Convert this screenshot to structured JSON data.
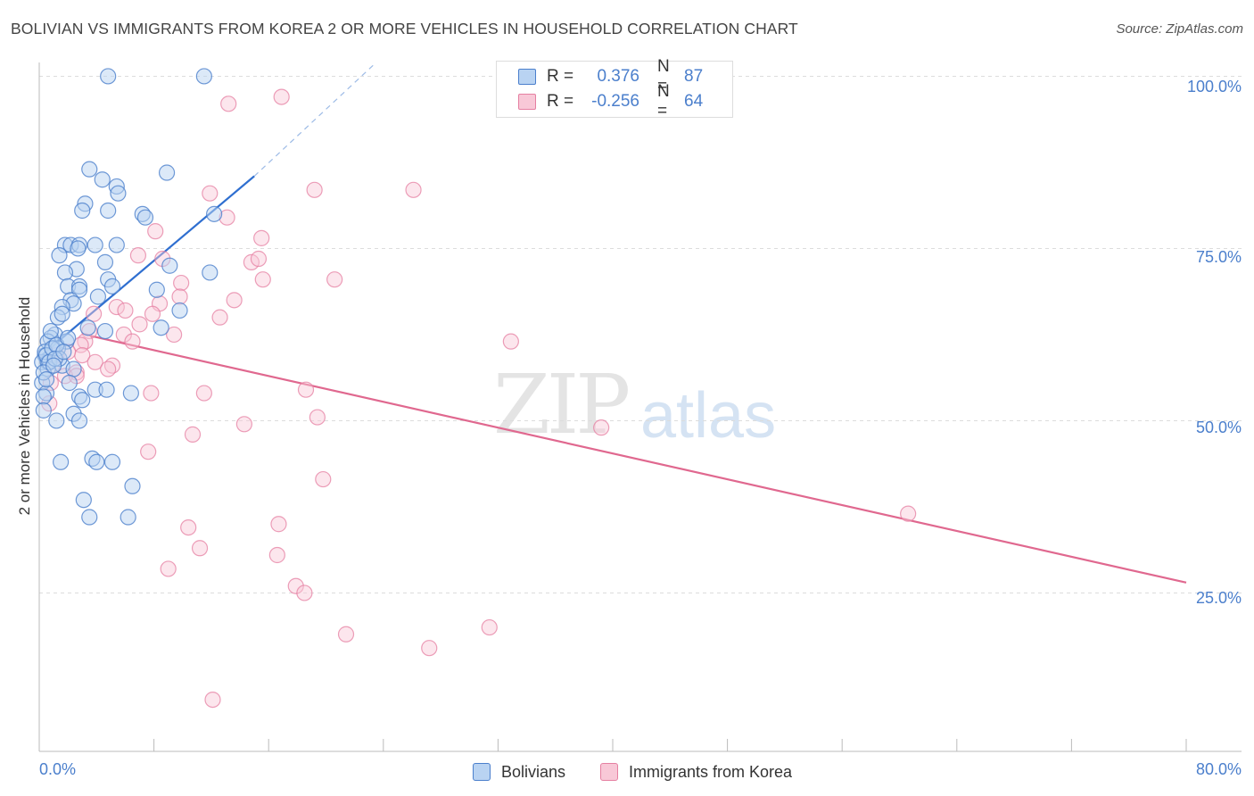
{
  "header": {
    "title": "BOLIVIAN VS IMMIGRANTS FROM KOREA 2 OR MORE VEHICLES IN HOUSEHOLD CORRELATION CHART",
    "source": "Source: ZipAtlas.com"
  },
  "watermark": {
    "zip": "ZIP",
    "atlas": "atlas"
  },
  "legend": {
    "r_label": "R =",
    "n_label": "N =",
    "bolivians": {
      "r": "0.376",
      "n": "87"
    },
    "korea": {
      "r": "-0.256",
      "n": "64"
    }
  },
  "bottom_legend": {
    "bolivians": "Bolivians",
    "korea": "Immigrants from Korea"
  },
  "colors": {
    "blue": "#4b7fcc",
    "blue_fill": "#b9d3f2",
    "pink": "#e57fa1",
    "pink_fill": "#f8c8d7",
    "blue_line": "#2f6fd0",
    "pink_line": "#e0688f",
    "grid": "#dcdcdc"
  },
  "chart_data": {
    "type": "scatter",
    "title": "BOLIVIAN VS IMMIGRANTS FROM KOREA 2 OR MORE VEHICLES IN HOUSEHOLD CORRELATION CHART",
    "xlabel": "",
    "ylabel": "2 or more Vehicles in Household",
    "xlim": [
      0,
      80
    ],
    "ylim": [
      2,
      102
    ],
    "x_tick_labels": [
      "0.0%",
      "80.0%"
    ],
    "y_ticks": [
      25,
      50,
      75,
      100
    ],
    "y_tick_labels": [
      "25.0%",
      "50.0%",
      "75.0%",
      "100.0%"
    ],
    "grid": true,
    "legend_position": "top-center",
    "series": [
      {
        "name": "Bolivians",
        "r": 0.376,
        "n": 87,
        "trend": {
          "x": [
            0,
            15
          ],
          "y": [
            59.2,
            85.5
          ],
          "dashed_to": [
            23.5,
            102
          ]
        },
        "points": [
          [
            4.8,
            100
          ],
          [
            11.5,
            100
          ],
          [
            3.5,
            86.5
          ],
          [
            8.9,
            86
          ],
          [
            4.4,
            85
          ],
          [
            5.4,
            84
          ],
          [
            5.5,
            83
          ],
          [
            3.2,
            81.5
          ],
          [
            4.8,
            80.5
          ],
          [
            3.0,
            80.5
          ],
          [
            7.2,
            80
          ],
          [
            7.4,
            79.5
          ],
          [
            12.2,
            80
          ],
          [
            1.8,
            75.5
          ],
          [
            2.2,
            75.5
          ],
          [
            2.8,
            75.5
          ],
          [
            3.9,
            75.5
          ],
          [
            5.4,
            75.5
          ],
          [
            2.7,
            75
          ],
          [
            1.4,
            74
          ],
          [
            9.1,
            72.5
          ],
          [
            4.6,
            73
          ],
          [
            2.6,
            72
          ],
          [
            1.8,
            71.5
          ],
          [
            11.9,
            71.5
          ],
          [
            4.8,
            70.5
          ],
          [
            2.0,
            69.5
          ],
          [
            2.8,
            69.5
          ],
          [
            2.8,
            69
          ],
          [
            5.1,
            69.5
          ],
          [
            8.2,
            69
          ],
          [
            4.1,
            68
          ],
          [
            2.2,
            67.5
          ],
          [
            2.4,
            67
          ],
          [
            1.6,
            66.5
          ],
          [
            9.8,
            66
          ],
          [
            1.3,
            65
          ],
          [
            1.6,
            65.5
          ],
          [
            3.4,
            63.5
          ],
          [
            4.6,
            63
          ],
          [
            8.5,
            63.5
          ],
          [
            1.1,
            62.5
          ],
          [
            0.8,
            62
          ],
          [
            0.6,
            61.5
          ],
          [
            1.9,
            61.5
          ],
          [
            1.0,
            60.5
          ],
          [
            1.3,
            60.5
          ],
          [
            0.4,
            59.5
          ],
          [
            0.2,
            58.5
          ],
          [
            0.6,
            58.5
          ],
          [
            1.6,
            58
          ],
          [
            0.6,
            57.5
          ],
          [
            2.4,
            57.5
          ],
          [
            0.2,
            55.5
          ],
          [
            2.1,
            55.5
          ],
          [
            0.5,
            54
          ],
          [
            0.3,
            53.5
          ],
          [
            3.9,
            54.5
          ],
          [
            6.4,
            54
          ],
          [
            4.7,
            54.5
          ],
          [
            2.8,
            53.5
          ],
          [
            3.0,
            53
          ],
          [
            0.3,
            51.5
          ],
          [
            2.4,
            51
          ],
          [
            1.2,
            50
          ],
          [
            2.8,
            50
          ],
          [
            1.5,
            44
          ],
          [
            3.7,
            44.5
          ],
          [
            4.0,
            44
          ],
          [
            5.1,
            44
          ],
          [
            3.1,
            38.5
          ],
          [
            6.5,
            40.5
          ],
          [
            3.5,
            36
          ],
          [
            6.2,
            36
          ],
          [
            0.4,
            60
          ],
          [
            0.5,
            59.5
          ],
          [
            0.9,
            60.5
          ],
          [
            1.2,
            61
          ],
          [
            0.7,
            58.5
          ],
          [
            1.4,
            59
          ],
          [
            2.0,
            62
          ],
          [
            0.8,
            63
          ],
          [
            1.1,
            59
          ],
          [
            1.7,
            60
          ],
          [
            0.3,
            57
          ],
          [
            0.5,
            56
          ],
          [
            1.0,
            58
          ]
        ]
      },
      {
        "name": "Immigrants from Korea",
        "r": -0.256,
        "n": 64,
        "trend": {
          "x": [
            3.6,
            80
          ],
          "y": [
            62.3,
            26.5
          ]
        },
        "points": [
          [
            16.9,
            97
          ],
          [
            13.2,
            96
          ],
          [
            19.2,
            83.5
          ],
          [
            26.1,
            83.5
          ],
          [
            11.9,
            83
          ],
          [
            13.1,
            79.5
          ],
          [
            8.1,
            77.5
          ],
          [
            15.5,
            76.5
          ],
          [
            6.9,
            74
          ],
          [
            8.6,
            73.5
          ],
          [
            14.8,
            73
          ],
          [
            15.3,
            73.5
          ],
          [
            20.6,
            70.5
          ],
          [
            9.9,
            70
          ],
          [
            15.6,
            70.5
          ],
          [
            9.8,
            68
          ],
          [
            13.6,
            67.5
          ],
          [
            5.4,
            66.5
          ],
          [
            6.0,
            66
          ],
          [
            8.4,
            67
          ],
          [
            7.9,
            65.5
          ],
          [
            3.8,
            65.5
          ],
          [
            12.6,
            65
          ],
          [
            7.0,
            64
          ],
          [
            3.5,
            63
          ],
          [
            5.9,
            62.5
          ],
          [
            9.4,
            62.5
          ],
          [
            3.2,
            61.5
          ],
          [
            2.9,
            61
          ],
          [
            6.5,
            61.5
          ],
          [
            32.9,
            61.5
          ],
          [
            3.0,
            59.5
          ],
          [
            3.9,
            58.5
          ],
          [
            5.1,
            58
          ],
          [
            4.8,
            57.5
          ],
          [
            2.6,
            57
          ],
          [
            1.8,
            56.5
          ],
          [
            2.6,
            56.5
          ],
          [
            0.9,
            58
          ],
          [
            1.2,
            59.5
          ],
          [
            0.8,
            55.5
          ],
          [
            0.7,
            52.5
          ],
          [
            11.5,
            54
          ],
          [
            18.6,
            54.5
          ],
          [
            7.8,
            54
          ],
          [
            14.3,
            49.5
          ],
          [
            19.4,
            50.5
          ],
          [
            39.2,
            49
          ],
          [
            10.7,
            48
          ],
          [
            7.6,
            45.5
          ],
          [
            19.8,
            41.5
          ],
          [
            60.6,
            36.5
          ],
          [
            16.7,
            35
          ],
          [
            10.4,
            34.5
          ],
          [
            11.2,
            31.5
          ],
          [
            16.6,
            30.5
          ],
          [
            9.0,
            28.5
          ],
          [
            17.9,
            26
          ],
          [
            18.5,
            25
          ],
          [
            31.4,
            20
          ],
          [
            21.4,
            19
          ],
          [
            27.2,
            17
          ],
          [
            12.1,
            9.5
          ],
          [
            2.0,
            60
          ]
        ]
      }
    ]
  }
}
